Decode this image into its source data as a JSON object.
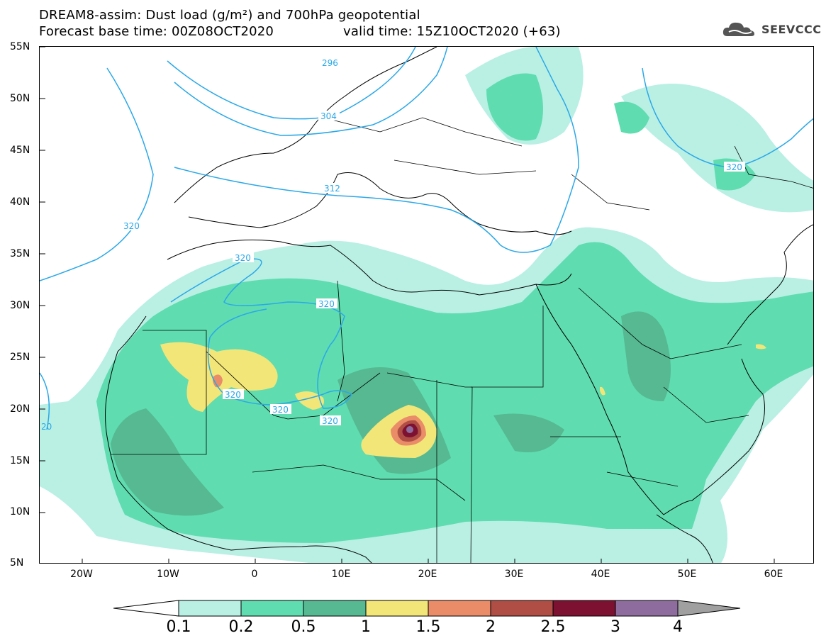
{
  "title": {
    "line1": "DREAM8-assim: Dust load (g/m²) and 700hPa geopotential",
    "line2_left": "Forecast base time: 00Z08OCT2020",
    "line2_right": "valid time: 15Z10OCT2020 (+63)"
  },
  "logo": {
    "text": "SEEVCCC",
    "icon": "cloud-logo-icon"
  },
  "axes": {
    "lat_labels": [
      "55N",
      "50N",
      "45N",
      "40N",
      "35N",
      "30N",
      "25N",
      "20N",
      "15N",
      "10N",
      "5N"
    ],
    "lon_labels": [
      "20W",
      "10W",
      "0",
      "10E",
      "20E",
      "30E",
      "40E",
      "50E",
      "60E"
    ]
  },
  "geopotential_labels": [
    {
      "text": "296"
    },
    {
      "text": "304"
    },
    {
      "text": "312"
    },
    {
      "text": "320"
    },
    {
      "text": "320"
    },
    {
      "text": "320"
    },
    {
      "text": "320"
    },
    {
      "text": "320"
    },
    {
      "text": "320"
    },
    {
      "text": "320"
    },
    {
      "text": "20"
    }
  ],
  "colorbar": {
    "levels": [
      "0.1",
      "0.2",
      "0.5",
      "1",
      "1.5",
      "2",
      "2.5",
      "3",
      "4"
    ],
    "colors": [
      "#b9f0e3",
      "#5fdcb0",
      "#56b992",
      "#f2e678",
      "#ea8c68",
      "#b04e45",
      "#7c1131",
      "#8e6d9e"
    ],
    "under_color": "#ffffff",
    "over_color": "#a0a0a0"
  }
}
